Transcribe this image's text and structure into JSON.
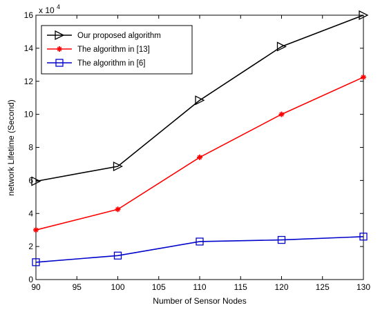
{
  "chart_data": {
    "type": "line",
    "xlabel": "Number of Sensor Nodes",
    "ylabel": "network Lifetime (Second)",
    "y_exponent_base": "x 10",
    "y_exponent_power": "4",
    "xlim": [
      90,
      130
    ],
    "ylim": [
      0,
      16
    ],
    "x_ticks": [
      90,
      95,
      100,
      105,
      110,
      115,
      120,
      125,
      130
    ],
    "y_ticks": [
      0,
      2,
      4,
      6,
      8,
      10,
      12,
      14,
      16
    ],
    "grid": false,
    "legend_position": "top-left",
    "x": [
      90,
      100,
      110,
      120,
      130
    ],
    "series": [
      {
        "name": "Our proposed algorithm",
        "color": "#000000",
        "marker": "triangle-right",
        "values": [
          5.95,
          6.85,
          10.85,
          14.1,
          16.0
        ]
      },
      {
        "name": "The algorithm in [13]",
        "color": "#ff0000",
        "marker": "star",
        "values": [
          3.0,
          4.25,
          7.4,
          10.0,
          12.25
        ]
      },
      {
        "name": "The algorithm in [6]",
        "color": "#0000cc",
        "marker": "square",
        "values": [
          1.05,
          1.45,
          2.3,
          2.4,
          2.6
        ]
      }
    ]
  }
}
